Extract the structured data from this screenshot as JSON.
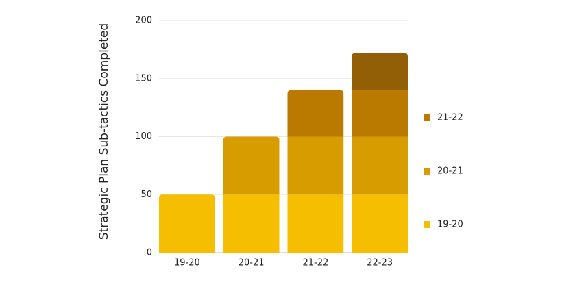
{
  "chart_data": {
    "type": "stacked-bar",
    "y_label": "Strategic Plan Sub-tactics Completed",
    "categories": [
      "19-20",
      "20-21",
      "21-22",
      "22-23"
    ],
    "series": [
      {
        "name": "19-20",
        "color": "#f5be00",
        "values": [
          50,
          50,
          50,
          50
        ]
      },
      {
        "name": "20-21",
        "color": "#d79d00",
        "values": [
          null,
          50,
          50,
          50
        ]
      },
      {
        "name": "21-22",
        "color": "#ba7a00",
        "values": [
          null,
          null,
          40,
          40
        ]
      },
      {
        "color": "#935f06",
        "values": [
          null,
          null,
          null,
          32
        ]
      }
    ],
    "ylim": [
      0,
      200
    ],
    "yticks": [
      0,
      50,
      100,
      150,
      200
    ],
    "grid": true
  }
}
